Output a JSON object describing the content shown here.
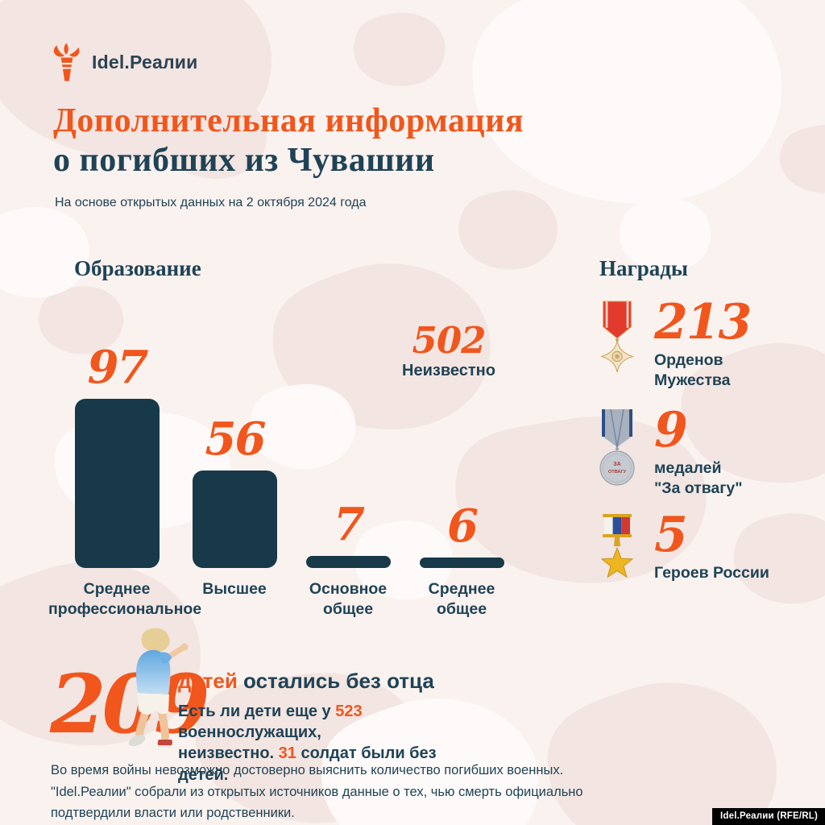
{
  "colors": {
    "accent": "#F1561D",
    "navy": "#1F4356",
    "bar_fill": "#17394A",
    "background": "#FAF2EF",
    "blob_dark": "#F3E5E1",
    "blob_light": "#FDFAF9",
    "watermark_bg": "#000000",
    "watermark_text": "#FFFFFF"
  },
  "logo": {
    "text": "Idel.Реалии"
  },
  "header": {
    "title_line1": "Дополнительная информация",
    "title_line2": "о погибших из Чувашии",
    "subtitle": "На основе открытых данных на 2 октября 2024 года"
  },
  "education": {
    "heading": "Образование",
    "bar_labels": [
      {
        "line1": "Среднее",
        "line2": "профессиональное"
      },
      {
        "line1": "Высшее",
        "line2": ""
      },
      {
        "line1": "Основное",
        "line2": "общее"
      },
      {
        "line1": "Среднее",
        "line2": "общее"
      }
    ]
  },
  "awards": {
    "heading": "Награды",
    "items": [
      {
        "value": "213",
        "label_line1": "Орденов",
        "label_line2": "Мужества",
        "icon": "order-of-courage-medal-icon"
      },
      {
        "value": "9",
        "label_line1": "медалей",
        "label_line2": "\"За отвагу\"",
        "icon": "za-otvagu-medal-icon"
      },
      {
        "value": "5",
        "label_line1": "Героев России",
        "label_line2": "",
        "icon": "hero-of-russia-star-icon"
      }
    ],
    "medal2_inscription_line1": "ЗА",
    "medal2_inscription_line2": "ОТВАГУ"
  },
  "children": {
    "value": "209",
    "headline_accent": "детей",
    "headline_rest": " остались без отца",
    "note_line1_prefix": "Есть ли дети еще у ",
    "note_num1": "523",
    "note_line1_suffix": " военнослужащих,",
    "note_line2_prefix": "неизвестно. ",
    "note_num2": "31",
    "note_line2_suffix": " солдат были без детей."
  },
  "footer": {
    "disclaimer": "Во время войны невозможно достоверно выяснить количество погибших военных. \"Idel.Реалии\" собрали из открытых источников данные о тех, чью смерть официально подтвердили власти или родственники.",
    "watermark": "Idel.Реалии (RFE/RL)"
  },
  "chart_data": [
    {
      "type": "bar",
      "title": "Образование",
      "categories": [
        "Среднее профессиональное",
        "Высшее",
        "Основное общее",
        "Среднее общее"
      ],
      "values": [
        97,
        56,
        7,
        6
      ],
      "value_labels": [
        "97",
        "56",
        "7",
        "6"
      ],
      "annotations": [
        {
          "label": "Неизвестно",
          "value": 502,
          "value_label": "502"
        }
      ],
      "bar_color": "#17394A",
      "value_label_color": "#F1561D",
      "ylim": [
        0,
        100
      ],
      "grid": false,
      "legend": "none"
    },
    {
      "type": "table",
      "title": "Награды",
      "rows": [
        [
          "213",
          "Орденов Мужества"
        ],
        [
          "9",
          "медалей \"За отвагу\""
        ],
        [
          "5",
          "Героев России"
        ]
      ]
    },
    {
      "type": "table",
      "title": "Дети",
      "rows": [
        [
          "209",
          "детей остались без отца"
        ]
      ],
      "note": "Есть ли дети еще у 523 военнослужащих, неизвестно. 31 солдат были без детей."
    }
  ]
}
